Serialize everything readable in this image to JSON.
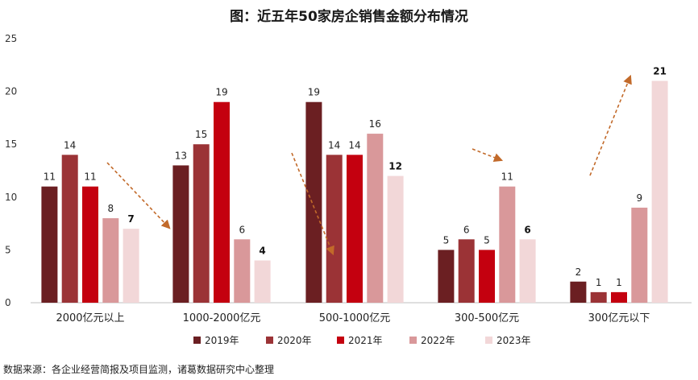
{
  "chart_data": {
    "type": "bar",
    "title": "图：近五年50家房企销售金额分布情况",
    "categories": [
      "2000亿元以上",
      "1000-2000亿元",
      "500-1000亿元",
      "300-500亿元",
      "300亿元以下"
    ],
    "series": [
      {
        "name": "2019年",
        "color": "#6b1f22",
        "values": [
          11,
          13,
          19,
          5,
          2
        ]
      },
      {
        "name": "2020年",
        "color": "#9b3336",
        "values": [
          14,
          15,
          14,
          6,
          1
        ]
      },
      {
        "name": "2021年",
        "color": "#c4000f",
        "values": [
          11,
          19,
          14,
          5,
          1
        ]
      },
      {
        "name": "2022年",
        "color": "#d9989a",
        "values": [
          8,
          6,
          16,
          11,
          9
        ]
      },
      {
        "name": "2023年",
        "color": "#f2d7d8",
        "values": [
          7,
          4,
          12,
          6,
          21
        ]
      }
    ],
    "ylim": [
      0,
      25
    ],
    "yticks": [
      0,
      5,
      10,
      15,
      20,
      25
    ],
    "grid": false,
    "legend_position": "bottom",
    "bold_series": "2023年",
    "trend_arrow_color": "#c26a2a"
  },
  "footer": {
    "source": "数据来源：各企业经营简报及项目监测，诸葛数据研究中心整理"
  }
}
